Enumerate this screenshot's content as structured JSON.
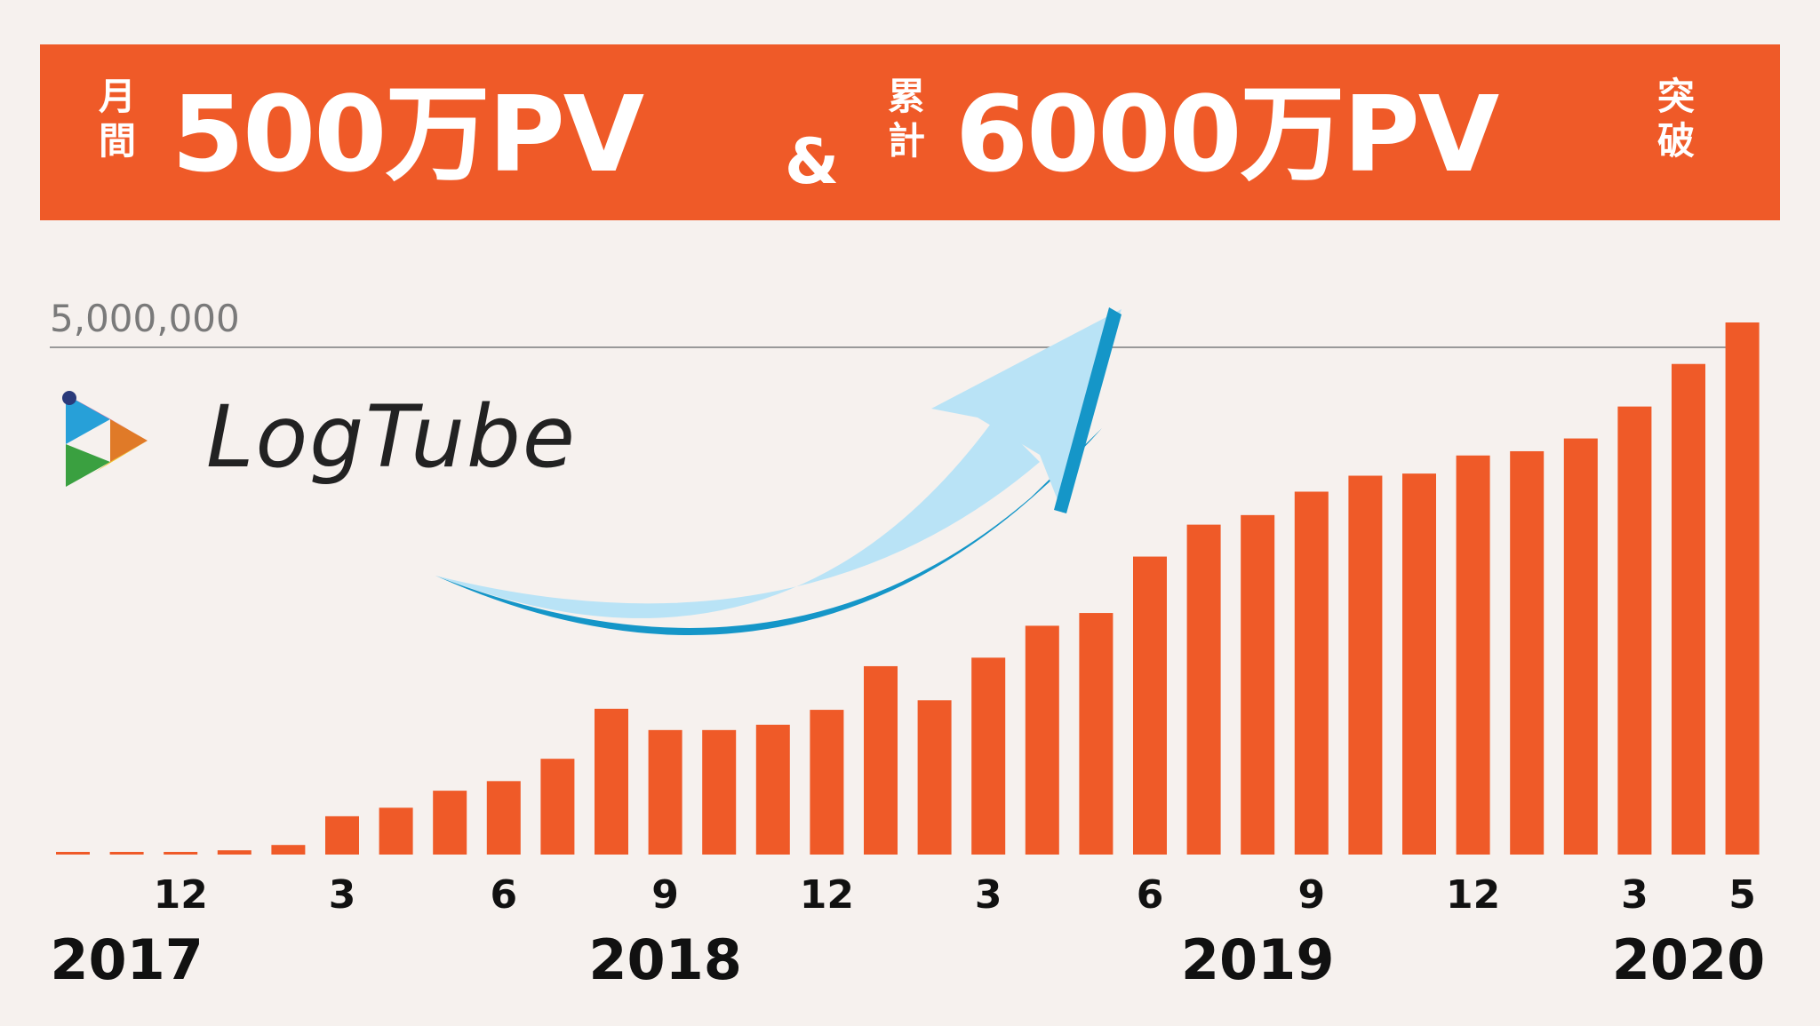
{
  "banner": {
    "left_vertical": [
      "月",
      "間"
    ],
    "monthly_value": "500万PV",
    "ampersand": "&",
    "mid_vertical": [
      "累",
      "計"
    ],
    "total_value": "6000万PV",
    "right_vertical": [
      "突",
      "破"
    ]
  },
  "logo": {
    "name": "LogTube",
    "icon": "play-triangle-icon"
  },
  "colors": {
    "banner": "#ef5a28",
    "bar": "#ef5a28",
    "arrow_light": "#b9e3f6",
    "arrow_dark": "#1596c8",
    "background": "#f6f1ee",
    "reference_line": "#999999"
  },
  "chart_data": {
    "type": "bar",
    "title": "",
    "reference_line": {
      "value": 5000000,
      "label": "5,000,000"
    },
    "ylim": [
      0,
      5000000
    ],
    "categories": [
      "2017-10",
      "2017-11",
      "2017-12",
      "2018-01",
      "2018-02",
      "2018-03",
      "2018-04",
      "2018-05",
      "2018-06",
      "2018-07",
      "2018-08",
      "2018-09",
      "2018-10",
      "2018-11",
      "2018-12",
      "2019-01",
      "2019-02",
      "2019-03",
      "2019-04",
      "2019-05",
      "2019-06",
      "2019-07",
      "2019-08",
      "2019-09",
      "2019-10",
      "2019-11",
      "2019-12",
      "2020-01",
      "2020-02",
      "2020-03",
      "2020-04",
      "2020-05"
    ],
    "values": [
      8000,
      10000,
      15000,
      40000,
      90000,
      360000,
      440000,
      600000,
      690000,
      900000,
      1370000,
      1170000,
      1170000,
      1220000,
      1360000,
      1770000,
      1450000,
      1850000,
      2150000,
      2270000,
      2800000,
      3100000,
      3190000,
      3410000,
      3560000,
      3580000,
      3750000,
      3790000,
      3910000,
      4210000,
      4610000,
      5000000
    ],
    "month_ticks": [
      {
        "index": 2,
        "label": "12"
      },
      {
        "index": 5,
        "label": "3"
      },
      {
        "index": 8,
        "label": "6"
      },
      {
        "index": 11,
        "label": "9"
      },
      {
        "index": 14,
        "label": "12"
      },
      {
        "index": 17,
        "label": "3"
      },
      {
        "index": 20,
        "label": "6"
      },
      {
        "index": 23,
        "label": "9"
      },
      {
        "index": 26,
        "label": "12"
      },
      {
        "index": 29,
        "label": "3"
      },
      {
        "index": 31,
        "label": "5"
      }
    ],
    "year_labels": [
      {
        "index": 1,
        "label": "2017"
      },
      {
        "index": 11,
        "label": "2018"
      },
      {
        "index": 22,
        "label": "2019"
      },
      {
        "index": 30,
        "label": "2020"
      }
    ]
  }
}
